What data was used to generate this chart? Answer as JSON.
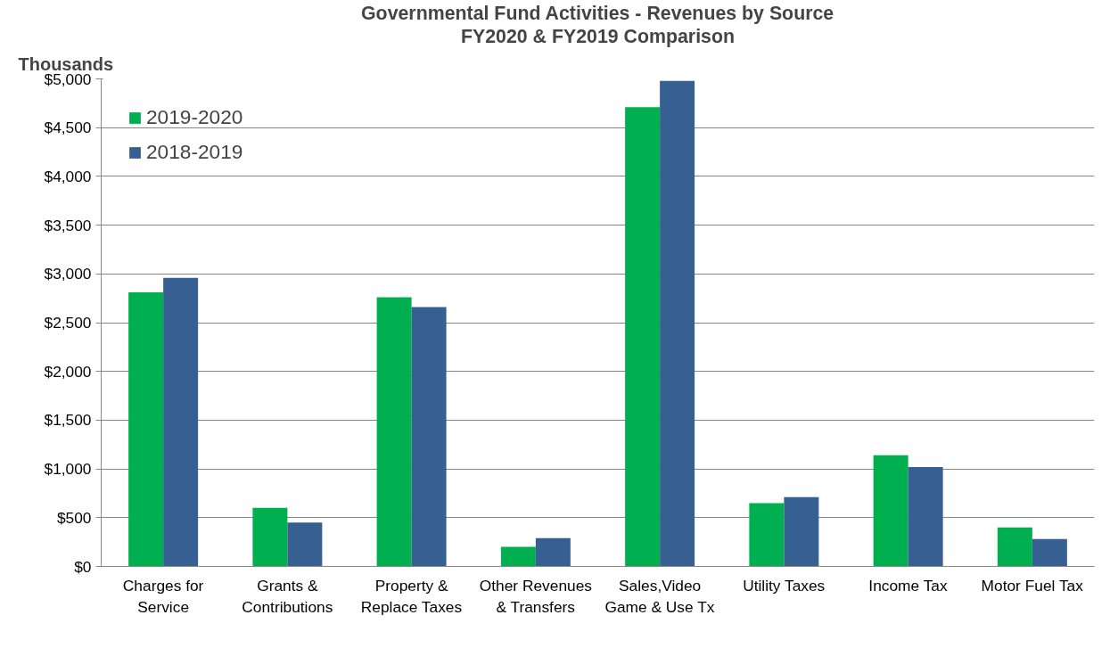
{
  "chart_data": {
    "type": "bar",
    "title": "Governmental Fund Activities - Revenues by Source",
    "subtitle": "FY2020 & FY2019 Comparison",
    "ylabel": "Thousands",
    "categories": [
      "Charges for Service",
      "Grants & Contributions",
      "Property & Replace Taxes",
      "Other Revenues & Transfers",
      "Sales,Video Game & Use Tx",
      "Utility Taxes",
      "Income Tax",
      "Motor Fuel Tax"
    ],
    "series": [
      {
        "name": "2019-2020",
        "color": "#00b050",
        "values": [
          2810,
          600,
          2760,
          200,
          4710,
          650,
          1140,
          400
        ]
      },
      {
        "name": "2018-2019",
        "color": "#376092",
        "values": [
          2960,
          450,
          2660,
          290,
          4980,
          710,
          1020,
          280
        ]
      }
    ],
    "ylim": [
      0,
      5000
    ],
    "yticks": [
      {
        "value": 0,
        "label": "$0"
      },
      {
        "value": 500,
        "label": "$500"
      },
      {
        "value": 1000,
        "label": "$1,000"
      },
      {
        "value": 1500,
        "label": "$1,500"
      },
      {
        "value": 2000,
        "label": "$2,000"
      },
      {
        "value": 2500,
        "label": "$2,500"
      },
      {
        "value": 3000,
        "label": "$3,000"
      },
      {
        "value": 3500,
        "label": "$3,500"
      },
      {
        "value": 4000,
        "label": "$4,000"
      },
      {
        "value": 4500,
        "label": "$4,500"
      },
      {
        "value": 5000,
        "label": "$5,000"
      }
    ],
    "grid": "y",
    "legend": "top left"
  }
}
